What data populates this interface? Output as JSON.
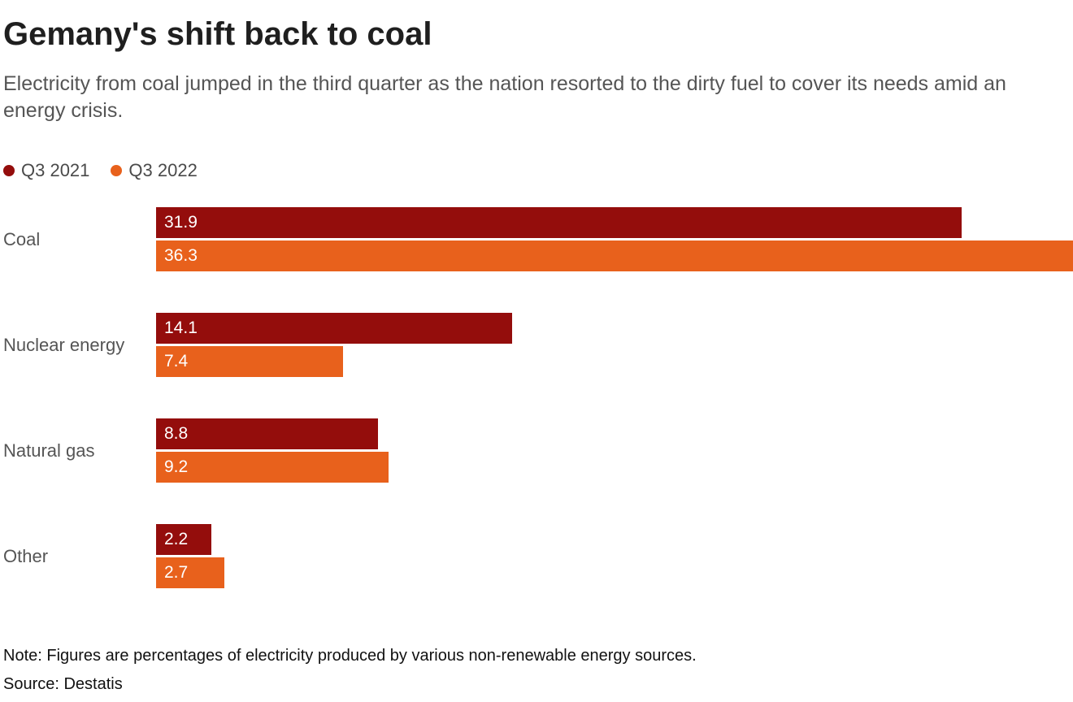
{
  "title": "Gemany's shift back to coal",
  "subtitle": "Electricity from coal jumped in the third quarter as the nation resorted to the dirty fuel to cover its needs amid an energy crisis.",
  "legend": [
    {
      "label": "Q3 2021",
      "color": "#940d0c"
    },
    {
      "label": "Q3 2022",
      "color": "#e8611c"
    }
  ],
  "note": "Note: Figures are percentages of electricity produced by various non-renewable energy sources.",
  "source": "Source: Destatis",
  "chart_data": {
    "type": "bar",
    "orientation": "horizontal",
    "title": "Gemany's shift back to coal",
    "categories": [
      "Coal",
      "Nuclear energy",
      "Natural gas",
      "Other"
    ],
    "series": [
      {
        "name": "Q3 2021",
        "color": "#940d0c",
        "values": [
          31.9,
          14.1,
          8.8,
          2.2
        ]
      },
      {
        "name": "Q3 2022",
        "color": "#e8611c",
        "values": [
          36.3,
          7.4,
          9.2,
          2.7
        ]
      }
    ],
    "xlim": [
      0,
      36.3
    ],
    "value_labels": true,
    "grid": false,
    "legend_position": "top-left",
    "units": "percent"
  }
}
